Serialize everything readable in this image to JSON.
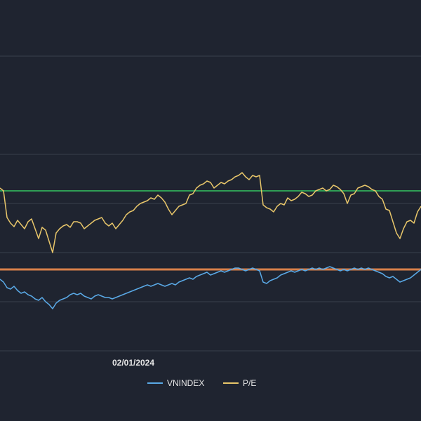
{
  "chart_data": {
    "type": "line",
    "title": "",
    "xlabel": "",
    "ylabel": "",
    "x_tick_labels": [
      "02/01/2024"
    ],
    "grid": true,
    "legend": {
      "placement": "bottom-center",
      "items": [
        {
          "label": "VNINDEX",
          "color": "#5aa9e6"
        },
        {
          "label": "P/E",
          "color": "#e8c66a"
        }
      ]
    },
    "reference_lines": [
      {
        "name": "pe-reference",
        "color": "#2f9e55"
      },
      {
        "name": "vnindex-reference",
        "color": "#d9804a"
      }
    ],
    "series": [
      {
        "name": "P/E",
        "color": "#e8c66a",
        "values": [
          [
            0,
            268
          ],
          [
            5,
            272
          ],
          [
            10,
            310
          ],
          [
            15,
            318
          ],
          [
            20,
            323
          ],
          [
            25,
            314
          ],
          [
            30,
            320
          ],
          [
            35,
            326
          ],
          [
            40,
            316
          ],
          [
            45,
            312
          ],
          [
            50,
            326
          ],
          [
            55,
            340
          ],
          [
            60,
            324
          ],
          [
            65,
            328
          ],
          [
            70,
            344
          ],
          [
            75,
            360
          ],
          [
            80,
            332
          ],
          [
            85,
            326
          ],
          [
            90,
            322
          ],
          [
            95,
            320
          ],
          [
            100,
            324
          ],
          [
            105,
            316
          ],
          [
            110,
            316
          ],
          [
            115,
            318
          ],
          [
            120,
            326
          ],
          [
            125,
            322
          ],
          [
            130,
            318
          ],
          [
            135,
            314
          ],
          [
            140,
            312
          ],
          [
            145,
            310
          ],
          [
            150,
            318
          ],
          [
            155,
            322
          ],
          [
            160,
            318
          ],
          [
            165,
            326
          ],
          [
            170,
            320
          ],
          [
            175,
            314
          ],
          [
            180,
            306
          ],
          [
            185,
            302
          ],
          [
            190,
            300
          ],
          [
            195,
            294
          ],
          [
            200,
            290
          ],
          [
            205,
            288
          ],
          [
            210,
            286
          ],
          [
            215,
            282
          ],
          [
            220,
            284
          ],
          [
            225,
            278
          ],
          [
            230,
            282
          ],
          [
            235,
            288
          ],
          [
            240,
            298
          ],
          [
            245,
            306
          ],
          [
            250,
            300
          ],
          [
            255,
            294
          ],
          [
            260,
            292
          ],
          [
            265,
            290
          ],
          [
            270,
            278
          ],
          [
            275,
            276
          ],
          [
            280,
            268
          ],
          [
            285,
            264
          ],
          [
            290,
            262
          ],
          [
            295,
            258
          ],
          [
            300,
            260
          ],
          [
            305,
            268
          ],
          [
            310,
            264
          ],
          [
            315,
            260
          ],
          [
            320,
            262
          ],
          [
            325,
            258
          ],
          [
            330,
            256
          ],
          [
            335,
            252
          ],
          [
            340,
            250
          ],
          [
            345,
            246
          ],
          [
            350,
            252
          ],
          [
            355,
            256
          ],
          [
            360,
            250
          ],
          [
            365,
            252
          ],
          [
            370,
            250
          ],
          [
            375,
            292
          ],
          [
            380,
            296
          ],
          [
            385,
            298
          ],
          [
            390,
            302
          ],
          [
            395,
            294
          ],
          [
            400,
            290
          ],
          [
            405,
            292
          ],
          [
            410,
            282
          ],
          [
            415,
            286
          ],
          [
            420,
            284
          ],
          [
            425,
            280
          ],
          [
            430,
            274
          ],
          [
            435,
            276
          ],
          [
            440,
            280
          ],
          [
            445,
            278
          ],
          [
            450,
            272
          ],
          [
            455,
            270
          ],
          [
            460,
            268
          ],
          [
            465,
            272
          ],
          [
            470,
            270
          ],
          [
            475,
            264
          ],
          [
            480,
            266
          ],
          [
            485,
            270
          ],
          [
            490,
            276
          ],
          [
            495,
            290
          ],
          [
            500,
            278
          ],
          [
            505,
            276
          ],
          [
            510,
            268
          ],
          [
            515,
            266
          ],
          [
            520,
            264
          ],
          [
            525,
            266
          ],
          [
            530,
            270
          ],
          [
            535,
            272
          ],
          [
            540,
            280
          ],
          [
            545,
            284
          ],
          [
            550,
            298
          ],
          [
            555,
            300
          ],
          [
            560,
            316
          ],
          [
            565,
            332
          ],
          [
            570,
            340
          ],
          [
            575,
            326
          ],
          [
            580,
            316
          ],
          [
            585,
            314
          ],
          [
            590,
            318
          ],
          [
            595,
            302
          ],
          [
            600,
            294
          ]
        ]
      },
      {
        "name": "VNINDEX",
        "color": "#5aa9e6",
        "values": [
          [
            0,
            398
          ],
          [
            5,
            402
          ],
          [
            10,
            410
          ],
          [
            15,
            412
          ],
          [
            20,
            408
          ],
          [
            25,
            414
          ],
          [
            30,
            418
          ],
          [
            35,
            416
          ],
          [
            40,
            420
          ],
          [
            45,
            422
          ],
          [
            50,
            426
          ],
          [
            55,
            428
          ],
          [
            60,
            424
          ],
          [
            65,
            430
          ],
          [
            70,
            434
          ],
          [
            75,
            440
          ],
          [
            80,
            432
          ],
          [
            85,
            428
          ],
          [
            90,
            426
          ],
          [
            95,
            424
          ],
          [
            100,
            420
          ],
          [
            105,
            418
          ],
          [
            110,
            420
          ],
          [
            115,
            418
          ],
          [
            120,
            422
          ],
          [
            125,
            424
          ],
          [
            130,
            426
          ],
          [
            135,
            422
          ],
          [
            140,
            420
          ],
          [
            145,
            422
          ],
          [
            150,
            424
          ],
          [
            155,
            424
          ],
          [
            160,
            426
          ],
          [
            165,
            424
          ],
          [
            170,
            422
          ],
          [
            175,
            420
          ],
          [
            180,
            418
          ],
          [
            185,
            416
          ],
          [
            190,
            414
          ],
          [
            195,
            412
          ],
          [
            200,
            410
          ],
          [
            205,
            408
          ],
          [
            210,
            406
          ],
          [
            215,
            408
          ],
          [
            220,
            406
          ],
          [
            225,
            404
          ],
          [
            230,
            406
          ],
          [
            235,
            408
          ],
          [
            240,
            406
          ],
          [
            245,
            404
          ],
          [
            250,
            406
          ],
          [
            255,
            402
          ],
          [
            260,
            400
          ],
          [
            265,
            398
          ],
          [
            270,
            396
          ],
          [
            275,
            398
          ],
          [
            280,
            394
          ],
          [
            285,
            392
          ],
          [
            290,
            390
          ],
          [
            295,
            388
          ],
          [
            300,
            392
          ],
          [
            305,
            390
          ],
          [
            310,
            388
          ],
          [
            315,
            386
          ],
          [
            320,
            388
          ],
          [
            325,
            386
          ],
          [
            330,
            384
          ],
          [
            335,
            382
          ],
          [
            340,
            382
          ],
          [
            345,
            384
          ],
          [
            350,
            386
          ],
          [
            355,
            384
          ],
          [
            360,
            382
          ],
          [
            365,
            384
          ],
          [
            370,
            386
          ],
          [
            375,
            402
          ],
          [
            380,
            404
          ],
          [
            385,
            400
          ],
          [
            390,
            398
          ],
          [
            395,
            396
          ],
          [
            400,
            392
          ],
          [
            405,
            390
          ],
          [
            410,
            388
          ],
          [
            415,
            386
          ],
          [
            420,
            388
          ],
          [
            425,
            386
          ],
          [
            430,
            384
          ],
          [
            435,
            386
          ],
          [
            440,
            384
          ],
          [
            445,
            382
          ],
          [
            450,
            384
          ],
          [
            455,
            382
          ],
          [
            460,
            384
          ],
          [
            465,
            382
          ],
          [
            470,
            380
          ],
          [
            475,
            382
          ],
          [
            480,
            384
          ],
          [
            485,
            386
          ],
          [
            490,
            384
          ],
          [
            495,
            386
          ],
          [
            500,
            384
          ],
          [
            505,
            382
          ],
          [
            510,
            384
          ],
          [
            515,
            382
          ],
          [
            520,
            384
          ],
          [
            525,
            382
          ],
          [
            530,
            384
          ],
          [
            535,
            386
          ],
          [
            540,
            388
          ],
          [
            545,
            390
          ],
          [
            550,
            394
          ],
          [
            555,
            396
          ],
          [
            560,
            394
          ],
          [
            565,
            398
          ],
          [
            570,
            402
          ],
          [
            575,
            400
          ],
          [
            580,
            398
          ],
          [
            585,
            396
          ],
          [
            590,
            392
          ],
          [
            595,
            388
          ],
          [
            600,
            384
          ]
        ]
      }
    ]
  }
}
